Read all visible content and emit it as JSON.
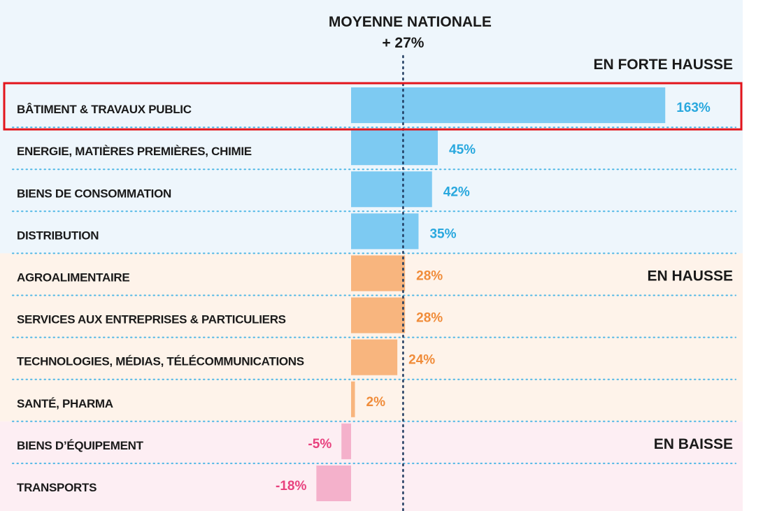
{
  "chart_data": {
    "type": "bar",
    "orientation": "horizontal",
    "reference_line": {
      "label": "MOYENNE NATIONALE",
      "value_label": "+ 27%",
      "value": 27
    },
    "categories": [
      "BÂTIMENT & TRAVAUX PUBLIC",
      "ENERGIE, MATIÈRES PREMIÈRES, CHIMIE",
      "BIENS DE CONSOMMATION",
      "DISTRIBUTION",
      "AGROALIMENTAIRE",
      "SERVICES AUX  ENTREPRISES & PARTICULIERS",
      "TECHNOLOGIES, MÉDIAS, TÉLÉCOMMUNICATIONS",
      "SANTÉ, PHARMA",
      "BIENS D’ÉQUIPEMENT",
      "TRANSPORTS"
    ],
    "values": [
      163,
      45,
      42,
      35,
      28,
      28,
      24,
      2,
      -5,
      -18
    ],
    "value_labels": [
      "163%",
      "45%",
      "42%",
      "35%",
      "28%",
      "28%",
      "24%",
      "2%",
      "-5%",
      "-18%"
    ],
    "groups": [
      {
        "title": "EN FORTE HAUSSE",
        "rows": [
          0,
          1,
          2,
          3
        ],
        "bar_color": "#7dcaf2",
        "text_color": "#29a8de",
        "bg_color": "#eef6fc"
      },
      {
        "title": "EN HAUSSE",
        "rows": [
          4,
          5,
          6,
          7
        ],
        "bar_color": "#f8b57e",
        "text_color": "#f08c3a",
        "bg_color": "#fef3ea"
      },
      {
        "title": "EN BAISSE",
        "rows": [
          8,
          9
        ],
        "bar_color": "#f4b1cb",
        "text_color": "#e8417e",
        "bg_color": "#fdeef3"
      }
    ],
    "highlighted_row": 0,
    "highlight_color": "#e3141b",
    "separator_color": "#4fb7e6",
    "reference_line_color": "#1e3a5f"
  }
}
